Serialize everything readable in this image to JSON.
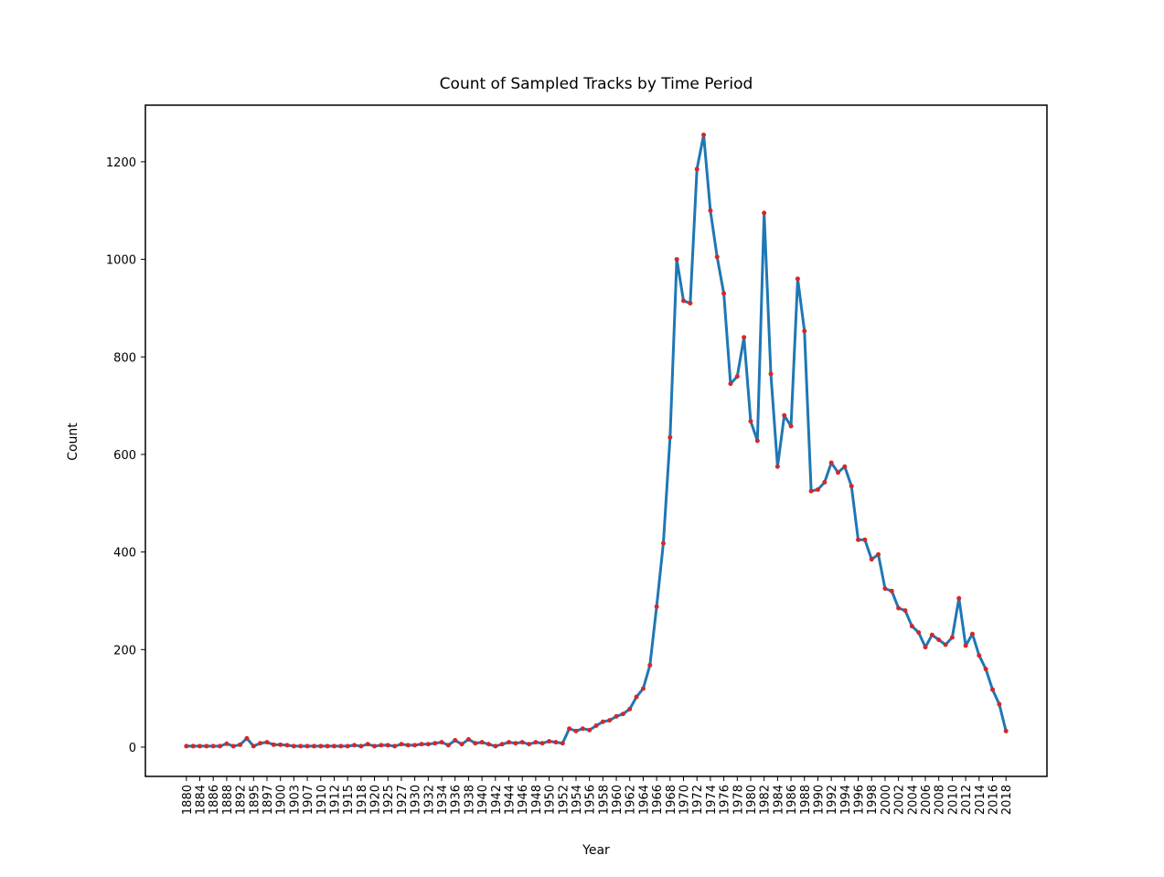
{
  "chart_data": {
    "type": "line",
    "title": "Count of Sampled Tracks by Time Period",
    "x_label": "Year",
    "y_label": "Count",
    "categories": [
      "1880",
      null,
      "1884",
      null,
      "1886",
      null,
      "1888",
      null,
      "1892",
      null,
      "1895",
      null,
      "1897",
      null,
      "1900",
      null,
      "1903",
      null,
      "1907",
      null,
      "1910",
      null,
      "1912",
      null,
      "1915",
      null,
      "1918",
      null,
      "1920",
      null,
      "1925",
      null,
      "1927",
      null,
      "1930",
      null,
      "1932",
      null,
      "1934",
      null,
      "1936",
      null,
      "1938",
      null,
      "1940",
      null,
      "1942",
      null,
      "1944",
      null,
      "1946",
      null,
      "1948",
      null,
      "1950",
      null,
      "1952",
      null,
      "1954",
      null,
      "1956",
      null,
      "1958",
      null,
      "1960",
      null,
      "1962",
      null,
      "1964",
      null,
      "1966",
      null,
      "1968",
      null,
      "1970",
      null,
      "1972",
      null,
      "1974",
      null,
      "1976",
      null,
      "1978",
      null,
      "1980",
      null,
      "1982",
      null,
      "1984",
      null,
      "1986",
      null,
      "1988",
      null,
      "1990",
      null,
      "1992",
      null,
      "1994",
      null,
      "1996",
      null,
      "1998",
      null,
      "2000",
      null,
      "2002",
      null,
      "2004",
      null,
      "2006",
      null,
      "2008",
      null,
      "2010",
      null,
      "2012",
      null,
      "2014",
      null,
      "2016",
      null,
      "2018"
    ],
    "series": [
      {
        "color": "#1f77b4",
        "marker_color": "#d62728",
        "values": [
          2,
          2,
          2,
          2,
          2,
          2,
          7,
          2,
          5,
          18,
          2,
          8,
          10,
          5,
          5,
          4,
          2,
          2,
          2,
          2,
          2,
          2,
          2,
          2,
          2,
          4,
          2,
          6,
          2,
          4,
          4,
          2,
          6,
          4,
          4,
          6,
          6,
          8,
          10,
          4,
          14,
          6,
          16,
          8,
          10,
          6,
          2,
          6,
          10,
          8,
          10,
          6,
          10,
          8,
          12,
          10,
          8,
          38,
          33,
          38,
          35,
          44,
          52,
          55,
          63,
          68,
          78,
          103,
          120,
          168,
          288,
          418,
          635,
          1000,
          915,
          910,
          1185,
          1255,
          1100,
          1005,
          930,
          745,
          760,
          840,
          668,
          628,
          1095,
          765,
          575,
          680,
          658,
          960,
          853,
          525,
          528,
          543,
          583,
          563,
          575,
          535,
          425,
          425,
          385,
          395,
          325,
          320,
          285,
          280,
          248,
          235,
          205,
          230,
          220,
          210,
          225,
          305,
          208,
          232,
          188,
          160,
          118,
          88,
          33
        ]
      }
    ],
    "ylim": [
      -60,
      1316
    ],
    "yticks": [
      0,
      200,
      400,
      600,
      800,
      1000,
      1200
    ],
    "grid": false
  }
}
